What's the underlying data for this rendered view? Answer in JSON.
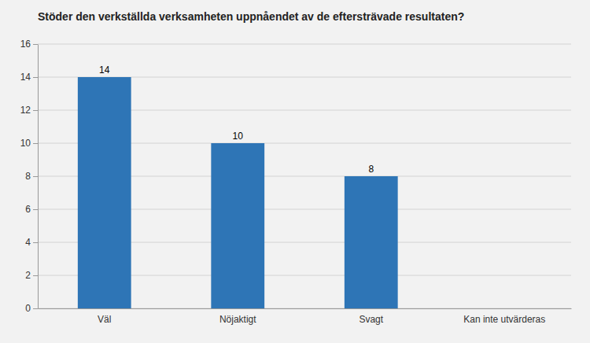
{
  "chart_data": {
    "type": "bar",
    "title": "Stöder den verkställda verksamheten uppnåendet av de eftersträvade resultaten?",
    "categories": [
      "Väl",
      "Nöjaktigt",
      "Svagt",
      "Kan inte utvärderas"
    ],
    "values": [
      14,
      10,
      8,
      null
    ],
    "color": "#2E75B6",
    "ylim": [
      0,
      16
    ],
    "yticks": [
      0,
      2,
      4,
      6,
      8,
      10,
      12,
      14,
      16
    ],
    "grid": true,
    "data_labels": true
  }
}
